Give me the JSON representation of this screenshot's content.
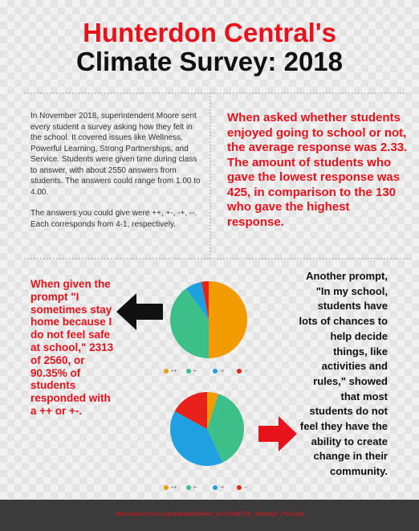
{
  "header": {
    "title_line1": "Hunterdon Central's",
    "title_line2": "Climate Survey: 2018"
  },
  "intro": [
    "In November 2018, superintendent Moore sent every student a survey asking how they felt in the school. It covered issues like Wellness, Powerful Learning, Strong Partnerships, and Service. Students were given time during class to answer, with about 2550 answers from students. The answers could range from 1.00 to 4.00.",
    "The answers you could give were ++, +-, -+, --. Each corresponds from 4-1, respectively."
  ],
  "finding_enjoy": "When asked whether students enjoyed going to school or not, the average response was 2.33. The amount of students who gave the lowest response was 425, in comparison to the 130 who gave the highest response.",
  "finding_safe": "When given the prompt \"I sometimes stay home because I do not feel safe at school,\" 2313 of 2560, or 90.35% of students responded with a ++ or +-.",
  "finding_decide": "Another prompt, \"In my school, students have lots of chances to help decide things, like activities and rules,\" showed that most students do not feel they have the ability to create change in their community.",
  "chart_data": [
    {
      "type": "pie",
      "categories": [
        "++",
        "+-",
        "-+",
        "--"
      ],
      "values": [
        50,
        40,
        7,
        3
      ],
      "colors": [
        "#f29b00",
        "#3dbf8a",
        "#1fa0e0",
        "#e8221b"
      ]
    },
    {
      "type": "pie",
      "categories": [
        "++",
        "+-",
        "-+",
        "--"
      ],
      "values": [
        5,
        38,
        40,
        17
      ],
      "colors": [
        "#f29b00",
        "#3dbf8a",
        "#1fa0e0",
        "#e8221b"
      ]
    }
  ],
  "footer": {
    "url": "http://www.hcrhs.org/uploaded/about_hc/20190725_Strategic_Plan.pdf"
  }
}
